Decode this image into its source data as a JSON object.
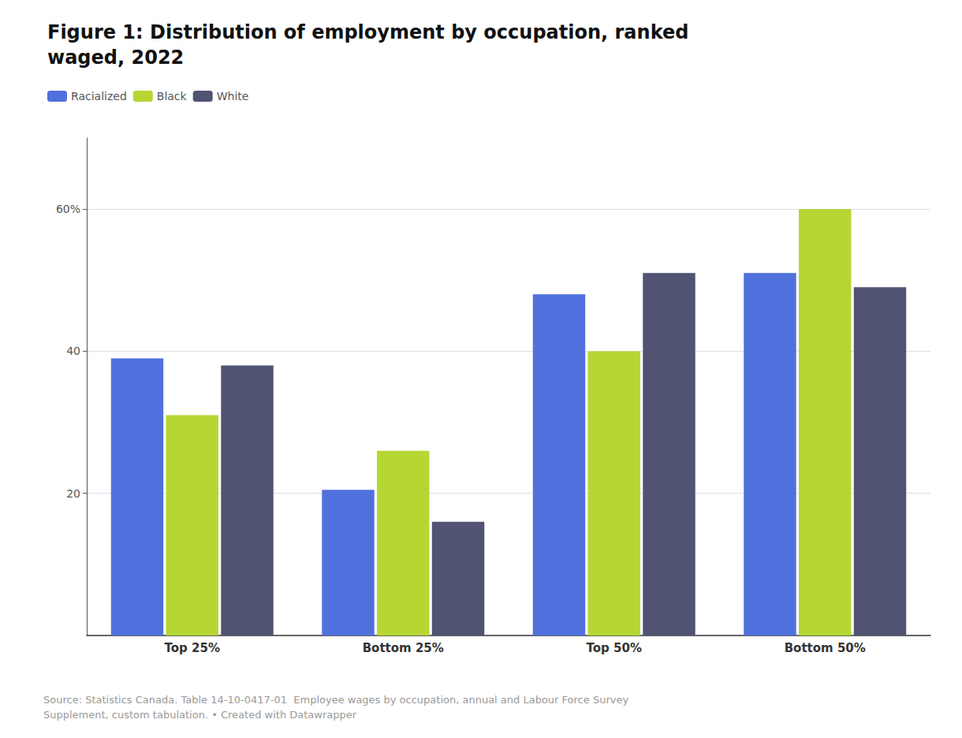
{
  "chart_data": {
    "type": "bar",
    "title": "Figure 1: Distribution of employment by occupation, ranked\nwaged, 2022",
    "categories": [
      "Top 25%",
      "Bottom 25%",
      "Top 50%",
      "Bottom 50%"
    ],
    "series": [
      {
        "name": "Racialized",
        "values": [
          39.0,
          20.5,
          48.0,
          51.0
        ]
      },
      {
        "name": "Black",
        "values": [
          31.0,
          26.0,
          40.0,
          60.0
        ]
      },
      {
        "name": "White",
        "values": [
          38.0,
          16.0,
          51.0,
          49.0
        ]
      }
    ],
    "ylim": [
      0,
      70
    ],
    "yticks": [
      20,
      40,
      {
        "value": 60,
        "label": "60%"
      }
    ],
    "grid": true,
    "legend": "upper left",
    "annotations": [
      "Source: Statistics Canada. Table 14-10-0417-01  Employee wages by occupation, annual and Labour Force Survey\nSupplement, custom tabulation. • Created with Datawrapper"
    ]
  }
}
